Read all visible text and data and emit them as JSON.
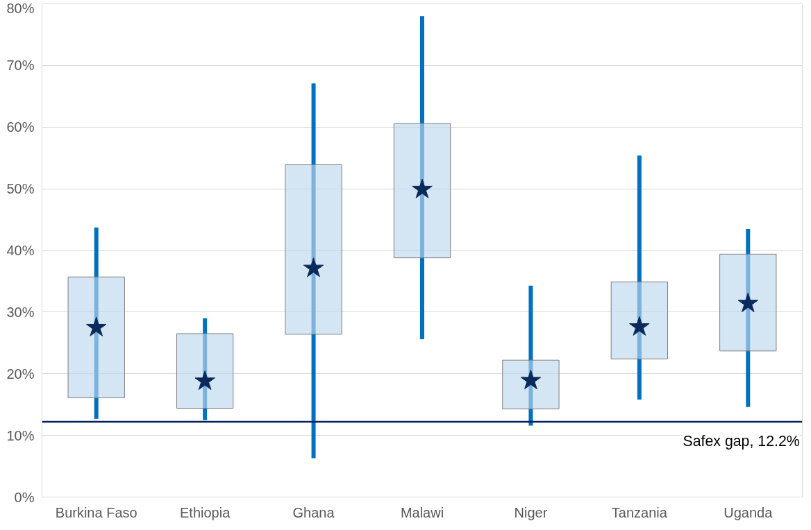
{
  "chart_data": {
    "type": "box",
    "categories": [
      "Burkina Faso",
      "Ethiopia",
      "Ghana",
      "Malawi",
      "Niger",
      "Tanzania",
      "Uganda"
    ],
    "boxes": [
      {
        "low": 12.7,
        "q1": 16.1,
        "median": 27.5,
        "q3": 35.7,
        "high": 43.7
      },
      {
        "low": 12.5,
        "q1": 14.4,
        "median": 18.8,
        "q3": 26.5,
        "high": 29.0
      },
      {
        "low": 6.3,
        "q1": 26.4,
        "median": 37.1,
        "q3": 53.9,
        "high": 67.1
      },
      {
        "low": 25.6,
        "q1": 38.8,
        "median": 49.9,
        "q3": 60.6,
        "high": 78.0
      },
      {
        "low": 11.6,
        "q1": 14.3,
        "median": 18.9,
        "q3": 22.2,
        "high": 34.3
      },
      {
        "low": 15.8,
        "q1": 22.4,
        "median": 27.6,
        "q3": 34.9,
        "high": 55.4
      },
      {
        "low": 14.6,
        "q1": 23.7,
        "median": 31.4,
        "q3": 39.4,
        "high": 43.5
      }
    ],
    "color": "#bdd7ee",
    "marker": "star",
    "ylim": [
      0,
      80
    ],
    "yticks": [
      {
        "value": 0,
        "label": "0%"
      },
      {
        "value": 10,
        "label": "10%"
      },
      {
        "value": 20,
        "label": "20%"
      },
      {
        "value": 30,
        "label": "30%"
      },
      {
        "value": 40,
        "label": "40%"
      },
      {
        "value": 50,
        "label": "50%"
      },
      {
        "value": 60,
        "label": "60%"
      },
      {
        "value": 70,
        "label": "70%"
      },
      {
        "value": 80,
        "label": "80%"
      }
    ],
    "grid": "y",
    "ref_lines": [
      {
        "axis": "y",
        "value": 12.2,
        "label": "Safex gap, 12.2%",
        "color": "#002060"
      }
    ]
  }
}
